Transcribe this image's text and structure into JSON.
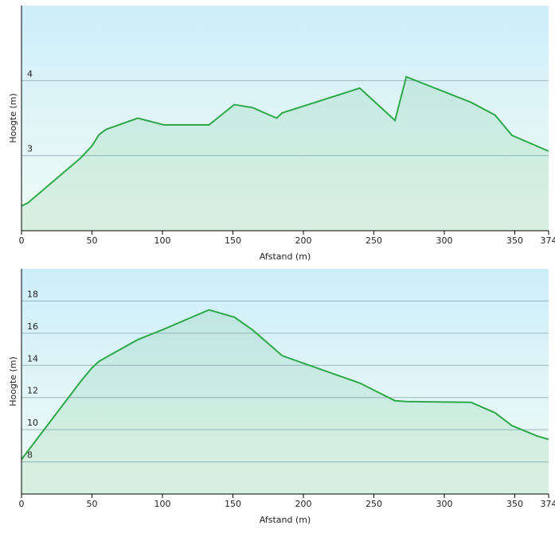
{
  "chart_data": [
    {
      "type": "area",
      "x_label": "Afstand (m)",
      "y_label": "Hoogte (m)",
      "x": [
        0,
        4.5,
        42,
        50,
        55,
        60,
        82.5,
        101,
        133,
        151,
        164,
        181,
        185,
        240,
        265,
        273,
        319,
        336,
        348,
        374
      ],
      "series": [
        {
          "name": "Hoogte",
          "color": "#2ea84a",
          "values": [
            2.33,
            2.37,
            2.97,
            3.13,
            3.28,
            3.35,
            3.5,
            3.41,
            3.41,
            3.68,
            3.64,
            3.5,
            3.57,
            3.9,
            3.47,
            4.05,
            3.71,
            3.54,
            3.27,
            3.06
          ]
        }
      ],
      "xlim": [
        0,
        374
      ],
      "xticks": [
        0,
        50,
        100,
        150,
        200,
        250,
        300,
        350,
        374
      ],
      "ylim": [
        2,
        5
      ],
      "yticks": [
        3,
        4
      ],
      "grid": true
    },
    {
      "type": "area",
      "x_label": "Afstand (m)",
      "y_label": "Hoogte (m)",
      "x": [
        0,
        42,
        50,
        55,
        60,
        82.5,
        101,
        133,
        151,
        164,
        185,
        240,
        265,
        273,
        319,
        336,
        348,
        366,
        374
      ],
      "series": [
        {
          "name": "Hoogte",
          "color": "#2ea84a",
          "values": [
            8.15,
            13.0,
            13.85,
            14.25,
            14.5,
            15.6,
            16.25,
            17.45,
            17.0,
            16.2,
            14.6,
            12.9,
            11.8,
            11.75,
            11.7,
            11.05,
            10.25,
            9.6,
            9.4
          ]
        }
      ],
      "xlim": [
        0,
        374
      ],
      "xticks": [
        0,
        50,
        100,
        150,
        200,
        250,
        300,
        350,
        374
      ],
      "ylim": [
        6,
        20
      ],
      "yticks": [
        8,
        10,
        12,
        14,
        16,
        18
      ],
      "grid": true
    }
  ]
}
